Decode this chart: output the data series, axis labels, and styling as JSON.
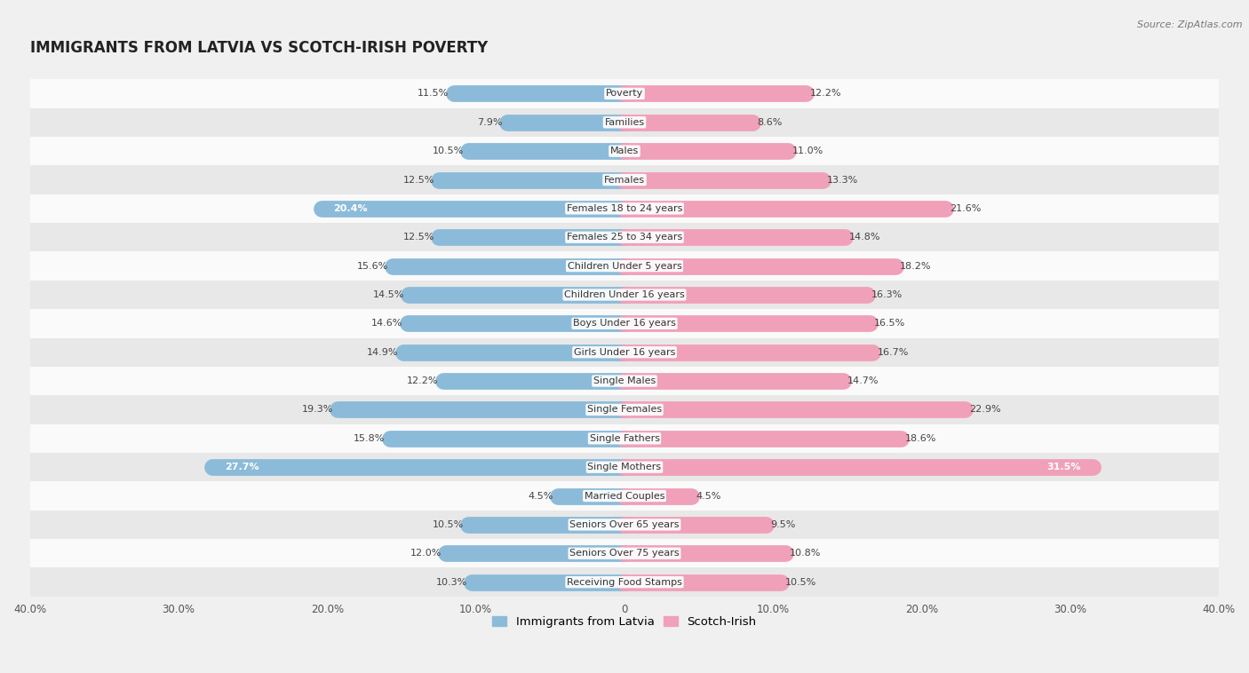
{
  "title": "IMMIGRANTS FROM LATVIA VS SCOTCH-IRISH POVERTY",
  "source": "Source: ZipAtlas.com",
  "categories": [
    "Poverty",
    "Families",
    "Males",
    "Females",
    "Females 18 to 24 years",
    "Females 25 to 34 years",
    "Children Under 5 years",
    "Children Under 16 years",
    "Boys Under 16 years",
    "Girls Under 16 years",
    "Single Males",
    "Single Females",
    "Single Fathers",
    "Single Mothers",
    "Married Couples",
    "Seniors Over 65 years",
    "Seniors Over 75 years",
    "Receiving Food Stamps"
  ],
  "latvia_values": [
    11.5,
    7.9,
    10.5,
    12.5,
    20.4,
    12.5,
    15.6,
    14.5,
    14.6,
    14.9,
    12.2,
    19.3,
    15.8,
    27.7,
    4.5,
    10.5,
    12.0,
    10.3
  ],
  "scotch_values": [
    12.2,
    8.6,
    11.0,
    13.3,
    21.6,
    14.8,
    18.2,
    16.3,
    16.5,
    16.7,
    14.7,
    22.9,
    18.6,
    31.5,
    4.5,
    9.5,
    10.8,
    10.5
  ],
  "latvia_color": "#8BBBD9",
  "scotch_color": "#F0A0B8",
  "bar_height": 0.52,
  "xlim": 40.0,
  "background_color": "#f0f0f0",
  "row_bg_light": "#fafafa",
  "row_bg_dark": "#e8e8e8",
  "title_fontsize": 12,
  "label_fontsize": 8,
  "value_fontsize": 8,
  "tick_fontsize": 8.5,
  "legend_fontsize": 9.5
}
